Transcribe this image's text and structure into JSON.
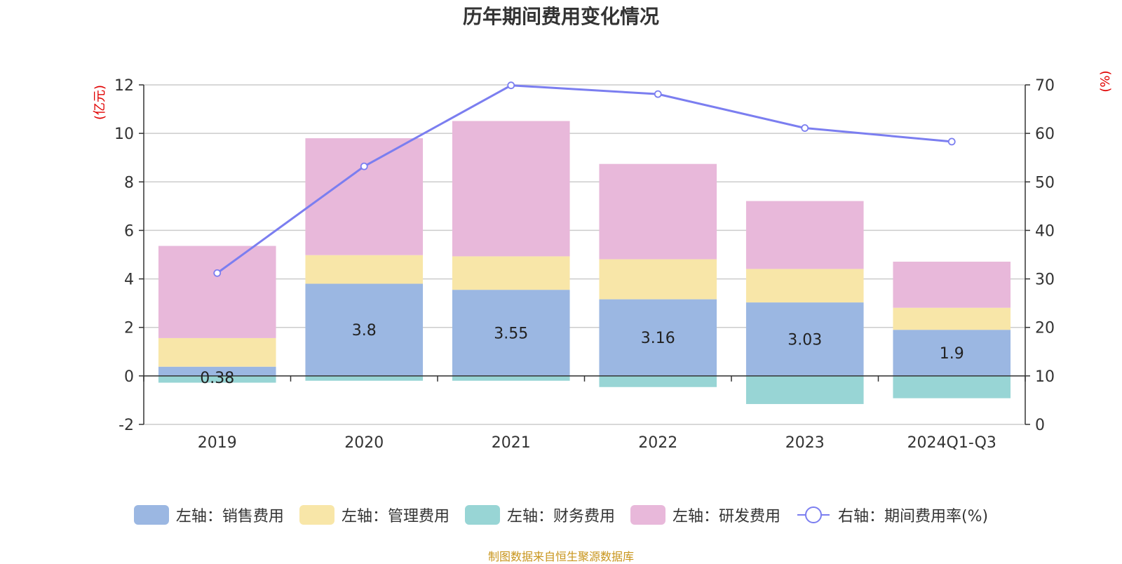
{
  "chart_data": {
    "type": "bar",
    "stacked": true,
    "title": "历年期间费用变化情况",
    "categories": [
      "2019",
      "2020",
      "2021",
      "2022",
      "2023",
      "2024Q1-Q3"
    ],
    "left_axis": {
      "unit_label": "(亿元)",
      "min": -2,
      "max": 12,
      "ticks": [
        -2,
        0,
        2,
        4,
        6,
        8,
        10,
        12
      ]
    },
    "right_axis": {
      "unit_label": "(%)",
      "min": 0,
      "max": 70,
      "ticks": [
        0,
        10,
        20,
        30,
        40,
        50,
        60,
        70
      ]
    },
    "series": [
      {
        "name": "左轴：销售费用",
        "axis": "left",
        "type": "bar",
        "color": "#9bb7e2",
        "values": [
          0.38,
          3.8,
          3.55,
          3.16,
          3.03,
          1.9
        ],
        "labels": [
          "0.38",
          "3.8",
          "3.55",
          "3.16",
          "3.03",
          "1.9"
        ]
      },
      {
        "name": "左轴：管理费用",
        "axis": "left",
        "type": "bar",
        "color": "#f8e6a8",
        "values": [
          1.18,
          1.18,
          1.38,
          1.65,
          1.38,
          0.91
        ]
      },
      {
        "name": "左轴：财务费用",
        "axis": "left",
        "type": "bar",
        "color": "#98d5d5",
        "values": [
          -0.28,
          -0.2,
          -0.2,
          -0.46,
          -1.16,
          -0.92
        ]
      },
      {
        "name": "左轴：研发费用",
        "axis": "left",
        "type": "bar",
        "color": "#e8b8da",
        "values": [
          3.8,
          4.82,
          5.58,
          3.93,
          2.8,
          1.9
        ]
      },
      {
        "name": "右轴：期间费用率(%)",
        "axis": "right",
        "type": "line",
        "color": "#7b7ef0",
        "values": [
          31.2,
          53.2,
          69.9,
          68.1,
          61.1,
          58.3
        ]
      }
    ],
    "legend_position": "bottom-center",
    "grid": true
  },
  "source_note": "制图数据来自恒生聚源数据库"
}
